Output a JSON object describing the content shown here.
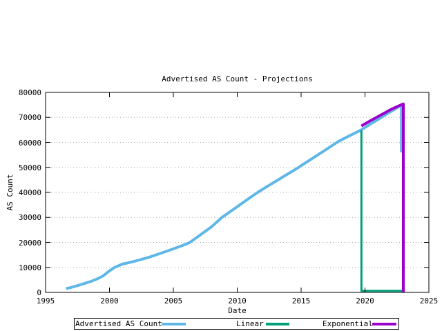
{
  "chart_data": {
    "type": "line",
    "title": "Advertised AS Count - Projections",
    "xlabel": "Date",
    "ylabel": "AS Count",
    "xlim": [
      1995,
      2025
    ],
    "ylim": [
      0,
      80000
    ],
    "xticks": [
      1995,
      2000,
      2005,
      2010,
      2015,
      2020,
      2025
    ],
    "yticks": [
      0,
      10000,
      20000,
      30000,
      40000,
      50000,
      60000,
      70000,
      80000
    ],
    "grid": "horizontal-dotted",
    "grid_color": "#a8a8a8",
    "axis_color": "#000000",
    "legend_position": "below-plot-boxed",
    "series": [
      {
        "name": "Advertised AS Count",
        "color": "#5eb7e6",
        "width": 4,
        "points": [
          [
            1996.6,
            1500
          ],
          [
            1997.0,
            2000
          ],
          [
            1997.5,
            2700
          ],
          [
            1998.0,
            3500
          ],
          [
            1998.5,
            4300
          ],
          [
            1999.0,
            5300
          ],
          [
            1999.5,
            6600
          ],
          [
            2000.0,
            8600
          ],
          [
            2000.4,
            10000
          ],
          [
            2001.0,
            11300
          ],
          [
            2001.5,
            11900
          ],
          [
            2002.0,
            12500
          ],
          [
            2003.0,
            13900
          ],
          [
            2004.0,
            15600
          ],
          [
            2005.0,
            17400
          ],
          [
            2006.0,
            19300
          ],
          [
            2006.3,
            20000
          ],
          [
            2007.0,
            22600
          ],
          [
            2008.0,
            26300
          ],
          [
            2008.8,
            30000
          ],
          [
            2009.0,
            30700
          ],
          [
            2010.0,
            34300
          ],
          [
            2011.0,
            37900
          ],
          [
            2011.6,
            40000
          ],
          [
            2012.0,
            41300
          ],
          [
            2013.0,
            44400
          ],
          [
            2014.0,
            47500
          ],
          [
            2014.8,
            50000
          ],
          [
            2015.0,
            50700
          ],
          [
            2016.0,
            54000
          ],
          [
            2017.0,
            57300
          ],
          [
            2017.8,
            60000
          ],
          [
            2018.0,
            60600
          ],
          [
            2019.0,
            63200
          ],
          [
            2019.7,
            65000
          ],
          [
            2020.5,
            67600
          ],
          [
            2021.0,
            69100
          ],
          [
            2021.5,
            70700
          ],
          [
            2022.0,
            72300
          ],
          [
            2022.5,
            73800
          ],
          [
            2022.85,
            75100
          ],
          [
            2022.85,
            56000
          ]
        ]
      },
      {
        "name": "Linear",
        "color": "#00a077",
        "width": 3,
        "points": [
          [
            2019.72,
            64800
          ],
          [
            2019.72,
            600
          ],
          [
            2022.97,
            600
          ]
        ]
      },
      {
        "name": "Exponential",
        "color": "#9c00cd",
        "width": 4,
        "points": [
          [
            2019.72,
            66600
          ],
          [
            2020.5,
            68900
          ],
          [
            2021.0,
            70300
          ],
          [
            2021.5,
            71700
          ],
          [
            2022.0,
            73100
          ],
          [
            2022.5,
            74300
          ],
          [
            2023.0,
            75400
          ],
          [
            2023.0,
            0
          ]
        ]
      }
    ]
  }
}
